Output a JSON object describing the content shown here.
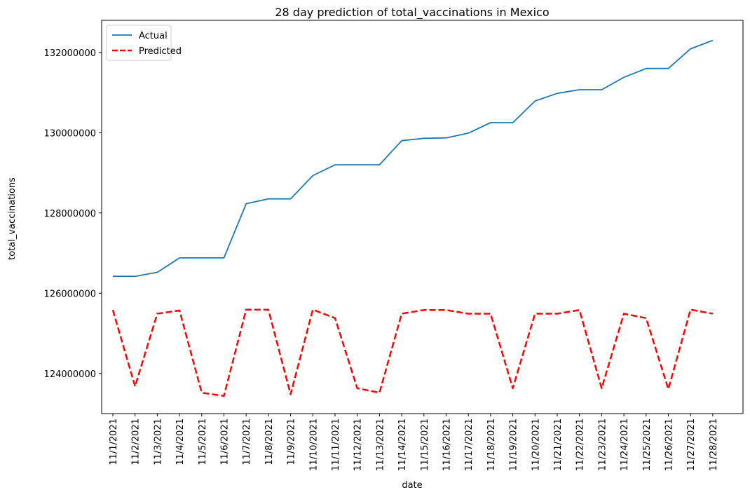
{
  "chart_data": {
    "type": "line",
    "title": "28 day prediction of total_vaccinations in Mexico",
    "xlabel": "date",
    "ylabel": "total_vaccinations",
    "x": [
      "11/1/2021",
      "11/2/2021",
      "11/3/2021",
      "11/4/2021",
      "11/5/2021",
      "11/6/2021",
      "11/7/2021",
      "11/8/2021",
      "11/9/2021",
      "11/10/2021",
      "11/11/2021",
      "11/12/2021",
      "11/13/2021",
      "11/14/2021",
      "11/15/2021",
      "11/16/2021",
      "11/17/2021",
      "11/18/2021",
      "11/19/2021",
      "11/20/2021",
      "11/21/2021",
      "11/22/2021",
      "11/23/2021",
      "11/24/2021",
      "11/25/2021",
      "11/26/2021",
      "11/27/2021",
      "11/28/2021"
    ],
    "ylim": [
      123000000,
      132800000
    ],
    "yticks": [
      124000000,
      126000000,
      128000000,
      130000000,
      132000000
    ],
    "yticklabels": [
      "124000000",
      "126000000",
      "128000000",
      "130000000",
      "132000000"
    ],
    "grid": false,
    "legend_position": "top-left",
    "series": [
      {
        "name": "Actual",
        "color": "#1f77b4",
        "style": "solid",
        "values": [
          126420000,
          126420000,
          126520000,
          126880000,
          126880000,
          126880000,
          128230000,
          128350000,
          128350000,
          128930000,
          129200000,
          129200000,
          129200000,
          129800000,
          129860000,
          129870000,
          129990000,
          130250000,
          130250000,
          130790000,
          130980000,
          131070000,
          131070000,
          131380000,
          131600000,
          131600000,
          132090000,
          132300000
        ]
      },
      {
        "name": "Predicted",
        "color": "#ff0000",
        "style": "dashed",
        "values": [
          125580000,
          123680000,
          125490000,
          125570000,
          123520000,
          123440000,
          125590000,
          125590000,
          123480000,
          125590000,
          125380000,
          123630000,
          123520000,
          125490000,
          125580000,
          125580000,
          125490000,
          125490000,
          123630000,
          125490000,
          125490000,
          125580000,
          123630000,
          125490000,
          125380000,
          123610000,
          125590000,
          125490000
        ]
      }
    ]
  }
}
